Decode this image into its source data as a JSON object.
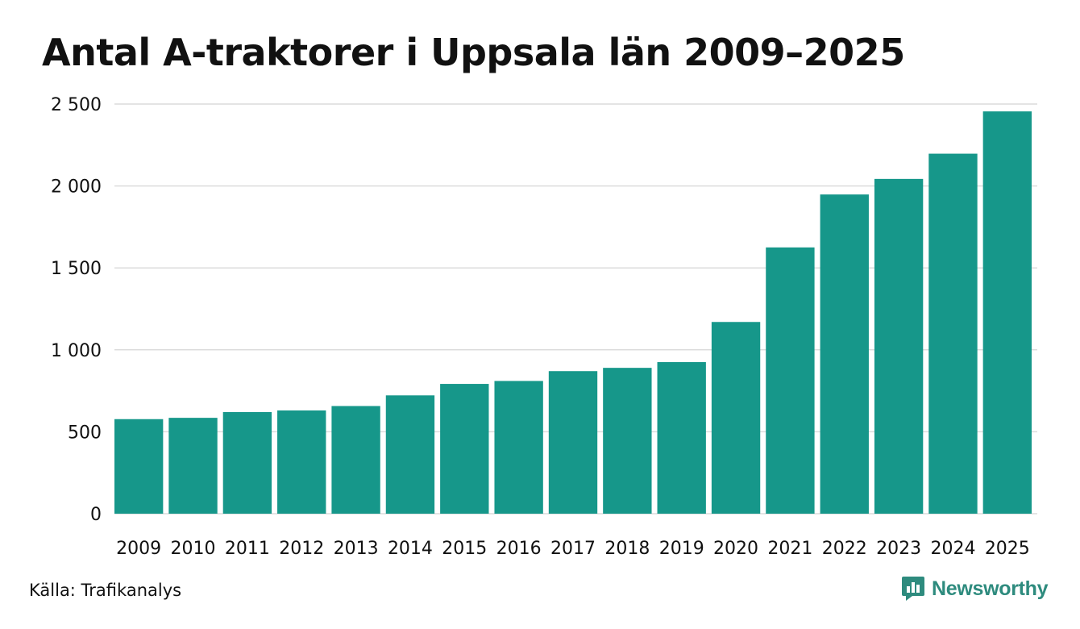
{
  "title": "Antal A-traktorer i Uppsala län 2009–2025",
  "source": "Källa: Trafikanalys",
  "brand": {
    "name": "Newsworthy",
    "color": "#2e8b7e",
    "icon": "newsworthy-logo-icon"
  },
  "colors": {
    "bar": "#16978a",
    "grid": "#dcdcdc"
  },
  "chart_data": {
    "type": "bar",
    "title": "Antal A-traktorer i Uppsala län 2009–2025",
    "xlabel": "",
    "ylabel": "",
    "categories": [
      "2009",
      "2010",
      "2011",
      "2012",
      "2013",
      "2014",
      "2015",
      "2016",
      "2017",
      "2018",
      "2019",
      "2020",
      "2021",
      "2022",
      "2023",
      "2024",
      "2025"
    ],
    "values": [
      577,
      585,
      620,
      630,
      657,
      722,
      792,
      810,
      870,
      890,
      925,
      1170,
      1625,
      1948,
      2043,
      2197,
      2455
    ],
    "ylim": [
      0,
      2500
    ],
    "yticks": [
      0,
      500,
      1000,
      1500,
      2000,
      2500
    ],
    "ytick_labels": [
      "0",
      "500",
      "1 000",
      "1 500",
      "2 000",
      "2 500"
    ],
    "grid": true,
    "legend": "none"
  }
}
